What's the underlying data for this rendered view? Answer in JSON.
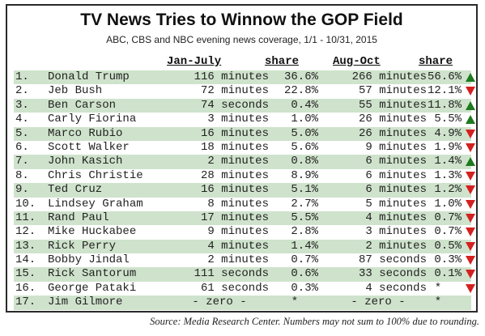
{
  "chart_data": {
    "type": "table",
    "title": "TV News Tries to Winnow the GOP Field",
    "subtitle": "ABC, CBS and NBC evening news coverage, 1/1 - 10/31, 2015",
    "columns": [
      "Jan-July",
      "share",
      "Aug-Oct",
      "share"
    ],
    "rows": [
      {
        "rank": "1.",
        "name": "Donald Trump",
        "jan_july": "116 minutes",
        "share1": "36.6%",
        "aug_oct": "266 minutes",
        "share2": "56.6%",
        "trend": "up",
        "trend_color": "#1e7a1e"
      },
      {
        "rank": "2.",
        "name": "Jeb Bush",
        "jan_july": "72 minutes",
        "share1": "22.8%",
        "aug_oct": "57 minutes",
        "share2": "12.1%",
        "trend": "down",
        "trend_color": "#d42020"
      },
      {
        "rank": "3.",
        "name": "Ben Carson",
        "jan_july": "74 seconds",
        "share1": "0.4%",
        "aug_oct": "55 minutes",
        "share2": "11.8%",
        "trend": "up",
        "trend_color": "#1e7a1e"
      },
      {
        "rank": "4.",
        "name": "Carly Fiorina",
        "jan_july": "3 minutes",
        "share1": "1.0%",
        "aug_oct": "26 minutes",
        "share2": "5.5%",
        "trend": "up",
        "trend_color": "#1e7a1e"
      },
      {
        "rank": "5.",
        "name": "Marco Rubio",
        "jan_july": "16 minutes",
        "share1": "5.0%",
        "aug_oct": "26 minutes",
        "share2": "4.9%",
        "trend": "down",
        "trend_color": "#d42020"
      },
      {
        "rank": "6.",
        "name": "Scott Walker",
        "jan_july": "18 minutes",
        "share1": "5.6%",
        "aug_oct": "9 minutes",
        "share2": "1.9%",
        "trend": "down",
        "trend_color": "#d42020"
      },
      {
        "rank": "7.",
        "name": "John Kasich",
        "jan_july": "2 minutes",
        "share1": "0.8%",
        "aug_oct": "6 minutes",
        "share2": "1.4%",
        "trend": "up",
        "trend_color": "#1e7a1e"
      },
      {
        "rank": "8.",
        "name": "Chris Christie",
        "jan_july": "28 minutes",
        "share1": "8.9%",
        "aug_oct": "6 minutes",
        "share2": "1.3%",
        "trend": "down",
        "trend_color": "#d42020"
      },
      {
        "rank": "9.",
        "name": "Ted Cruz",
        "jan_july": "16 minutes",
        "share1": "5.1%",
        "aug_oct": "6 minutes",
        "share2": "1.2%",
        "trend": "down",
        "trend_color": "#d42020"
      },
      {
        "rank": "10.",
        "name": "Lindsey Graham",
        "jan_july": "8 minutes",
        "share1": "2.7%",
        "aug_oct": "5 minutes",
        "share2": "1.0%",
        "trend": "down",
        "trend_color": "#d42020"
      },
      {
        "rank": "11.",
        "name": "Rand Paul",
        "jan_july": "17 minutes",
        "share1": "5.5%",
        "aug_oct": "4 minutes",
        "share2": "0.7%",
        "trend": "down",
        "trend_color": "#d42020"
      },
      {
        "rank": "12.",
        "name": "Mike Huckabee",
        "jan_july": "9 minutes",
        "share1": "2.8%",
        "aug_oct": "3 minutes",
        "share2": "0.7%",
        "trend": "down",
        "trend_color": "#d42020"
      },
      {
        "rank": "13.",
        "name": "Rick Perry",
        "jan_july": "4 minutes",
        "share1": "1.4%",
        "aug_oct": "2 minutes",
        "share2": "0.5%",
        "trend": "down",
        "trend_color": "#d42020"
      },
      {
        "rank": "14.",
        "name": "Bobby Jindal",
        "jan_july": "2 minutes",
        "share1": "0.7%",
        "aug_oct": "87 seconds",
        "share2": "0.3%",
        "trend": "down",
        "trend_color": "#d42020"
      },
      {
        "rank": "15.",
        "name": "Rick Santorum",
        "jan_july": "111 seconds",
        "share1": "0.6%",
        "aug_oct": "33 seconds",
        "share2": "0.1%",
        "trend": "down",
        "trend_color": "#d42020"
      },
      {
        "rank": "16.",
        "name": "George Pataki",
        "jan_july": "61 seconds",
        "share1": "0.3%",
        "aug_oct": "4 seconds",
        "share2": "*",
        "trend": "down",
        "trend_color": "#d42020"
      },
      {
        "rank": "17.",
        "name": "Jim Gilmore",
        "jan_july": "- zero -",
        "share1": "*",
        "aug_oct": "- zero -",
        "share2": "*",
        "trend": "none",
        "trend_color": ""
      }
    ],
    "source": "Source: Media Research Center. Numbers may not sum to 100% due to rounding.",
    "row_shade_color": "#cfe3cc"
  }
}
